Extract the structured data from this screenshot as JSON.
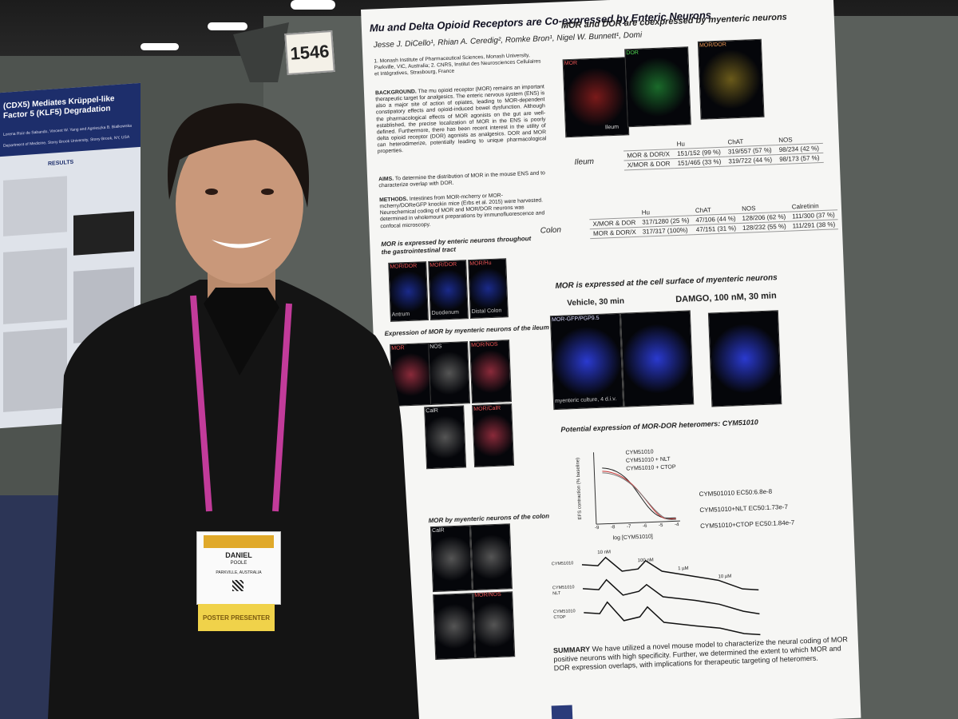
{
  "booth_number": "1546",
  "left_poster": {
    "title": "(CDX5) Mediates Krüppel-like Factor 5 (KLF5) Degradation",
    "authors": "Lorena Ruiz de Sabando, Vincent W. Yang and Agnieszka B. Bialkowska",
    "affiliation": "Department of Medicine, Stony Brook University, Stony Brook, NY, USA",
    "section": "RESULTS"
  },
  "poster": {
    "title": "Mu and Delta Opioid Receptors are Co-expressed by Enteric Neurons",
    "authors": "Jesse J. DiCello¹, Rhian A. Ceredig², Romke Bron¹, Nigel W. Bunnett¹, Domi",
    "affiliation": "1. Monash Institute of Pharmaceutical Sciences, Monash University, Parkville, VIC, Australia; 2. CNRS, Institut des Neurosciences Cellulaires et Intégratives, Strasbourg, France",
    "background_label": "BACKGROUND.",
    "background": "The mu opioid receptor (MOR) remains an important therapeutic target for analgesics. The enteric nervous system (ENS) is also a major site of action of opiates, leading to MOR-dependent constipatory effects and opioid-induced bowel dysfunction. Although the pharmacological effects of MOR agonists on the gut are well-established, the precise localization of MOR in the ENS is poorly defined. Furthermore, there has been recent interest in the utility of delta opioid receptor (DOR) agonists as analgesics. DOR and MOR can heterodimerize, potentially leading to unique pharmacological properties.",
    "aims_label": "AIMS.",
    "aims": "To determine the distribution of MOR in the mouse ENS and to characterize overlap with DOR.",
    "methods_label": "METHODS.",
    "methods": "Intestines from MOR-mcherry or MOR-mcherry/DOReGFP knockin mice (Erbs et al. 2015) were harvested. Neurochemical coding of MOR and MOR/DOR neurons was determined in wholemount preparations by immunofluorescence and confocal microscopy.",
    "section_gi": "MOR is expressed by enteric neurons throughout the gastrointestinal tract",
    "gi_labels": [
      "MOR/DOR",
      "MOR/DOR",
      "MOR/Hu",
      "Antrum",
      "Duodenum",
      "Distal Colon"
    ],
    "section_ileum": "Expression of MOR by myenteric neurons of the ileum",
    "ileum_labels": [
      "MOR",
      "NOS",
      "MOR/NOS",
      "CalR",
      "MOR/CalR"
    ],
    "section_colon": "MOR by myenteric neurons of the colon",
    "colon_labels": [
      "CalR",
      "MOR/NOS"
    ],
    "section_coexp": "MOR and DOR are coexpressed by myenteric neurons",
    "coexp_labels": [
      "MOR",
      "DOR",
      "MOR/DOR",
      "Ileum"
    ],
    "ileum_table": {
      "label": "Ileum",
      "header": [
        "Hu",
        "ChAT",
        "NOS"
      ],
      "rows": [
        [
          "MOR & DOR/X",
          "151/152 (99 %)",
          "319/557 (57 %)",
          "98/234 (42 %)"
        ],
        [
          "X/MOR & DOR",
          "151/465 (33 %)",
          "319/722 (44 %)",
          "98/173 (57 %)"
        ]
      ]
    },
    "colon_table": {
      "label": "Colon",
      "header": [
        "Hu",
        "ChAT",
        "NOS",
        "Calretinin"
      ],
      "rows": [
        [
          "X/MOR & DOR",
          "317/1280 (25 %)",
          "47/106 (44 %)",
          "128/206 (62 %)",
          "111/300 (37 %)"
        ],
        [
          "MOR & DOR/X",
          "317/317 (100%)",
          "47/151 (31 %)",
          "128/232 (55 %)",
          "111/291 (38 %)"
        ]
      ]
    },
    "section_surface": "MOR is expressed at the cell surface of myenteric neurons",
    "vehicle": "Vehicle, 30 min",
    "damgo": "DAMGO, 100 nM, 30 min",
    "surface_labels": [
      "MOR-GFP/PGP9.5",
      "myenteric culture, 4 d.i.v."
    ],
    "section_heteromer": "Potential expression of MOR-DOR heteromers: CYM51010",
    "chart_ylabel": "EFS contraction (% baseline)",
    "chart_xlabel": "log [CYM51010]",
    "chart_xticks": [
      "-9",
      "-8",
      "-7",
      "-6",
      "-5",
      "-4"
    ],
    "chart_legend": [
      "CYM51010",
      "CYM51010 + NLT",
      "CYM51010 + CTOP"
    ],
    "ec50": [
      "CYM501010 EC50:6.8e-8",
      "CYM51010+NLT EC50:1.73e-7",
      "CYM51010+CTOP EC50:1.84e-7"
    ],
    "trace_labels": [
      "CYM51010",
      "CYM51010 NLT",
      "CYM51010 CTOP"
    ],
    "doses": [
      "10 nM",
      "100 nM",
      "1 µM",
      "10 µM"
    ],
    "summary_label": "SUMMARY",
    "summary": "We have utilized a novel mouse model to characterize the neural coding of MOR positive neurons with high specificity. Further, we determined the extent to which MOR and DOR expression overlaps, with implications for therapeutic targeting of heteromers."
  },
  "badge": {
    "first_name": "DANIEL",
    "last_name": "POOLE",
    "location": "PARKVILLE, AUSTRALIA",
    "ribbon": "POSTER PRESENTER"
  }
}
